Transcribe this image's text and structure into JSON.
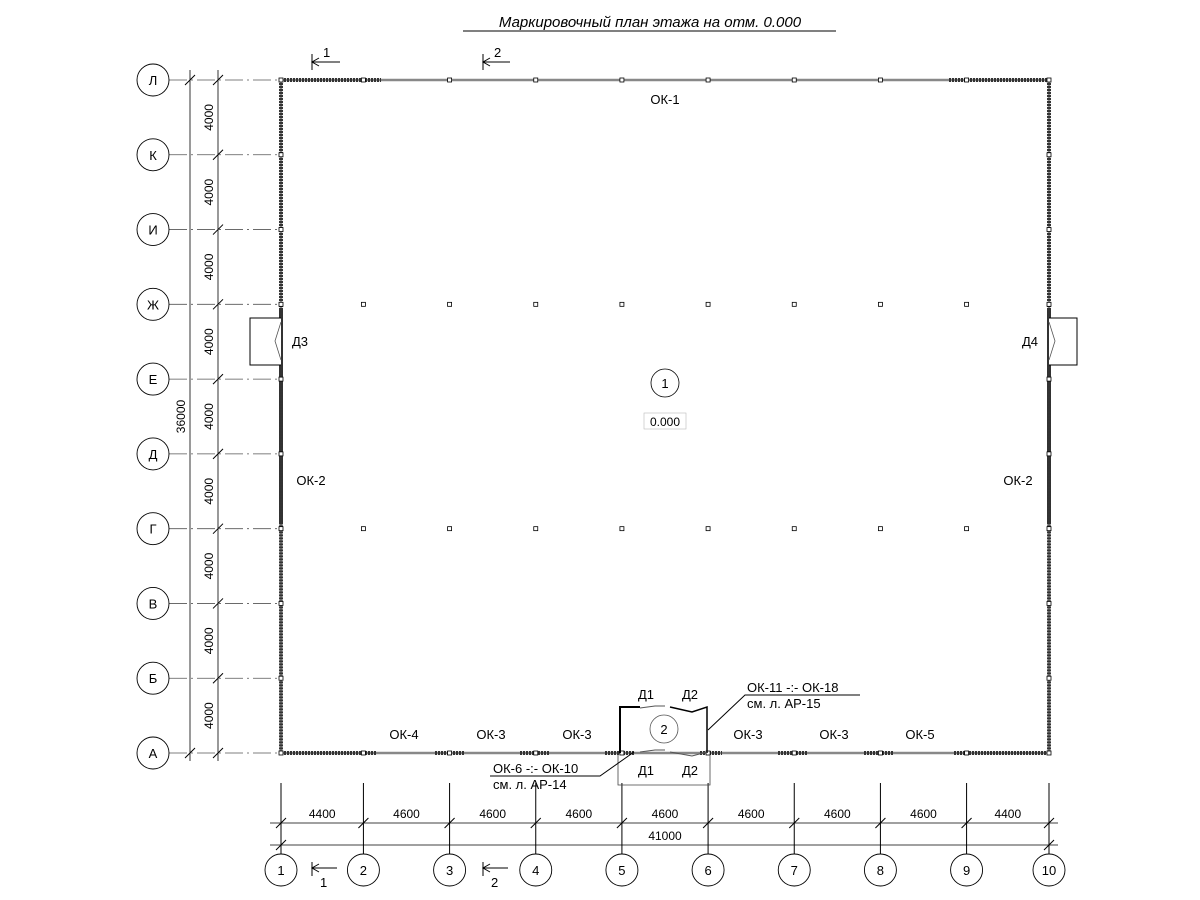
{
  "title": "Маркировочный план этажа на отм. 0.000",
  "columns": {
    "labels": [
      "1",
      "2",
      "3",
      "4",
      "5",
      "6",
      "7",
      "8",
      "9",
      "10"
    ],
    "spacings": [
      4400,
      4600,
      4600,
      4600,
      4600,
      4600,
      4600,
      4600,
      4400
    ],
    "total": "41000"
  },
  "rows": {
    "labels_bottom_to_top": [
      "А",
      "Б",
      "В",
      "Г",
      "Д",
      "Е",
      "Ж",
      "И",
      "К",
      "Л"
    ],
    "spacings": [
      4000,
      4000,
      4000,
      4000,
      4000,
      4000,
      4000,
      4000,
      4000
    ],
    "total": "36000"
  },
  "sections": {
    "s1": "1",
    "s2": "2"
  },
  "rooms": {
    "room1": "1",
    "room1_level": "0.000",
    "room2": "2"
  },
  "marks": {
    "ok1": "ОК-1",
    "ok2_left": "ОК-2",
    "ok2_right": "ОК-2",
    "d3": "Д3",
    "d4": "Д4",
    "bottom": [
      "ОК-4",
      "ОК-3",
      "ОК-3",
      "ОК-3",
      "ОК-3",
      "ОК-5"
    ],
    "d1_top": "Д1",
    "d2_top": "Д2",
    "d1_bottom": "Д1",
    "d2_bottom": "Д2"
  },
  "callouts": {
    "upper_line1": "ОК-11 -:- ОК-18",
    "upper_line2": "см. л. АР-15",
    "lower_line1": "ОК-6 -:- ОК-10",
    "lower_line2": "см. л. АР-14"
  }
}
